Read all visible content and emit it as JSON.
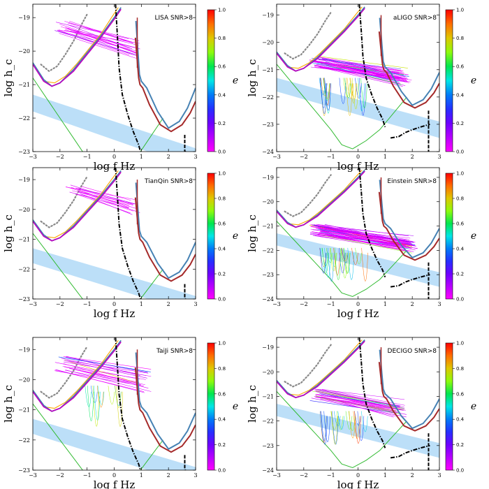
{
  "colors": {
    "lisa_curve": "#4682b4",
    "aligo_curve": "#a52a2a",
    "tianqin_curve": "#c000c0",
    "taiji_curve": "#ffa500",
    "decigo_curve": "#33bb33",
    "et_curve": "#000000",
    "dotted_curve": "#888888",
    "band": "#9fd1f5",
    "signal_low_e": "#ff00ff"
  },
  "chart_data": [
    {
      "type": "line",
      "panel": "LISA",
      "label": "LISA SNR>8",
      "xlabel": "log f Hz",
      "ylabel": "log h_c",
      "xlim": [
        -3,
        3
      ],
      "ylim": [
        -23,
        -18.6
      ],
      "xticks": [
        "−3",
        "−2",
        "−1",
        "0",
        "1",
        "2",
        "3"
      ],
      "yticks": [
        "−23",
        "−22",
        "−21",
        "−20",
        "−19"
      ],
      "colorbar": {
        "label": "e",
        "ticks": [
          "0.0",
          "0.2",
          "0.4",
          "0.6",
          "0.8",
          "1.0"
        ],
        "range": [
          0,
          1
        ]
      },
      "signals": {
        "x_range": [
          -2.2,
          1.0
        ],
        "y_range": [
          -20.1,
          -19.1
        ],
        "count": 20,
        "max_e": 0.15
      }
    },
    {
      "type": "line",
      "panel": "aLIGO",
      "label": "aLIGO SNR>8",
      "xlabel": "log f Hz",
      "ylabel": "log h_c",
      "xlim": [
        -3,
        3
      ],
      "ylim": [
        -24,
        -18.6
      ],
      "xticks": [
        "−3",
        "−2",
        "−1",
        "0",
        "1",
        "2",
        "3"
      ],
      "yticks": [
        "−24",
        "−23",
        "−22",
        "−21",
        "−20",
        "−19"
      ],
      "colorbar": {
        "label": "e",
        "ticks": [
          "0.0",
          "0.2",
          "0.4",
          "0.6",
          "0.8",
          "1.0"
        ],
        "range": [
          0,
          1
        ]
      },
      "signals": {
        "x_range": [
          -1.8,
          2.0
        ],
        "y_range": [
          -21.6,
          -20.5
        ],
        "count": 45,
        "max_e": 0.95
      }
    },
    {
      "type": "line",
      "panel": "TianQin",
      "label": "TianQin SNR>8",
      "xlabel": "log f Hz",
      "ylabel": "log h_c",
      "xlim": [
        -3,
        3
      ],
      "ylim": [
        -23,
        -18.6
      ],
      "xticks": [
        "−3",
        "−2",
        "−1",
        "0",
        "1",
        "2",
        "3"
      ],
      "yticks": [
        "−23",
        "−22",
        "−21",
        "−20",
        "−19"
      ],
      "colorbar": {
        "label": "e",
        "ticks": [
          "0.0",
          "0.2",
          "0.4",
          "0.6",
          "0.8",
          "1.0"
        ],
        "range": [
          0,
          1
        ]
      },
      "signals": {
        "x_range": [
          -1.8,
          1.0
        ],
        "y_range": [
          -20.2,
          -19.1
        ],
        "count": 14,
        "max_e": 0.1
      }
    },
    {
      "type": "line",
      "panel": "Einstein",
      "label": "Einstein SNR>8",
      "xlabel": "log f Hz",
      "ylabel": "log h_c",
      "xlim": [
        -3,
        3
      ],
      "ylim": [
        -24,
        -18.6
      ],
      "xticks": [
        "−3",
        "−2",
        "−1",
        "0",
        "1",
        "2",
        "3"
      ],
      "yticks": [
        "−24",
        "−23",
        "−22",
        "−21",
        "−20",
        "−19"
      ],
      "colorbar": {
        "label": "e",
        "ticks": [
          "0.0",
          "0.2",
          "0.4",
          "0.6",
          "0.8",
          "1.0"
        ],
        "range": [
          0,
          1
        ]
      },
      "signals": {
        "x_range": [
          -1.8,
          2.2
        ],
        "y_range": [
          -22.2,
          -20.9
        ],
        "count": 55,
        "max_e": 0.95
      }
    },
    {
      "type": "line",
      "panel": "TaiJi",
      "label": "TaiJi SNR>8",
      "xlabel": "log f Hz",
      "ylabel": "log h_c",
      "xlim": [
        -3,
        3
      ],
      "ylim": [
        -23,
        -18.6
      ],
      "xticks": [
        "−3",
        "−2",
        "−1",
        "0",
        "1",
        "2",
        "3"
      ],
      "yticks": [
        "−23",
        "−22",
        "−21",
        "−20",
        "−19"
      ],
      "colorbar": {
        "label": "e",
        "ticks": [
          "0.0",
          "0.2",
          "0.4",
          "0.6",
          "0.8",
          "1.0"
        ],
        "range": [
          0,
          1
        ]
      },
      "signals": {
        "x_range": [
          -2.2,
          1.4
        ],
        "y_range": [
          -20.5,
          -19.2
        ],
        "count": 20,
        "max_e": 0.9
      }
    },
    {
      "type": "line",
      "panel": "DECIGO",
      "label": "DECIGO SNR>8",
      "xlabel": "log f Hz",
      "ylabel": "log h_c",
      "xlim": [
        -3,
        3
      ],
      "ylim": [
        -24,
        -18.6
      ],
      "xticks": [
        "−3",
        "−2",
        "−1",
        "0",
        "1",
        "2",
        "3"
      ],
      "yticks": [
        "−24",
        "−23",
        "−22",
        "−21",
        "−20",
        "−19"
      ],
      "colorbar": {
        "label": "e",
        "ticks": [
          "0.0",
          "0.2",
          "0.4",
          "0.6",
          "0.8",
          "1.0"
        ],
        "range": [
          0,
          1
        ]
      },
      "signals": {
        "x_range": [
          -1.8,
          1.8
        ],
        "y_range": [
          -21.9,
          -20.7
        ],
        "count": 30,
        "max_e": 0.95
      }
    }
  ]
}
